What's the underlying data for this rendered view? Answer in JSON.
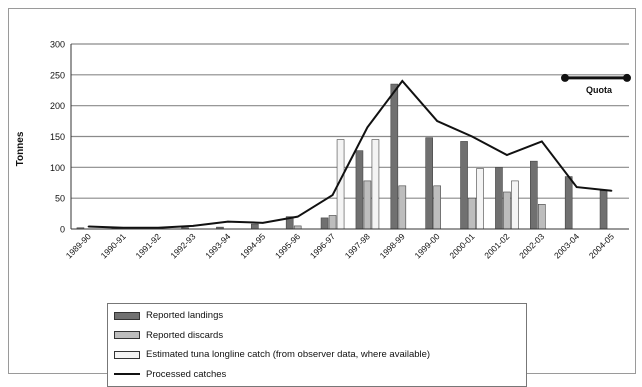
{
  "chart_data": {
    "type": "bar",
    "ylabel": "Tonnes",
    "ylim": [
      0,
      300
    ],
    "yticks": [
      "0",
      "50",
      "100",
      "150",
      "200",
      "250",
      "300"
    ],
    "categories": [
      "1989-90",
      "1990-91",
      "1991-92",
      "1992-93",
      "1993-94",
      "1994-95",
      "1995-96",
      "1996-97",
      "1997-98",
      "1998-99",
      "1999-00",
      "2000-01",
      "2001-02",
      "2002-03",
      "2003-04",
      "2004-05"
    ],
    "series": [
      {
        "name": "Reported landings",
        "type": "bar",
        "color": "#707070",
        "values": [
          2,
          1,
          1,
          2,
          3,
          8,
          20,
          18,
          127,
          235,
          148,
          142,
          100,
          110,
          85,
          62
        ]
      },
      {
        "name": "Reported discards",
        "type": "bar",
        "color": "#bdbdbd",
        "values": [
          0,
          0,
          0,
          0,
          0,
          0,
          5,
          22,
          78,
          70,
          70,
          50,
          60,
          40,
          0,
          0
        ]
      },
      {
        "name": "Estimated tuna longline catch (from observer data, where available)",
        "type": "bar",
        "color": "#f4f4f4",
        "values": [
          0,
          0,
          0,
          0,
          0,
          0,
          0,
          145,
          145,
          0,
          0,
          98,
          78,
          0,
          0,
          0
        ]
      },
      {
        "name": "Processed catches",
        "type": "line",
        "color": "#111111",
        "values": [
          4,
          2,
          2,
          5,
          12,
          10,
          20,
          55,
          165,
          240,
          175,
          150,
          120,
          142,
          68,
          62
        ]
      }
    ],
    "annotations": [
      {
        "label": "Quota",
        "value": 245
      }
    ]
  }
}
